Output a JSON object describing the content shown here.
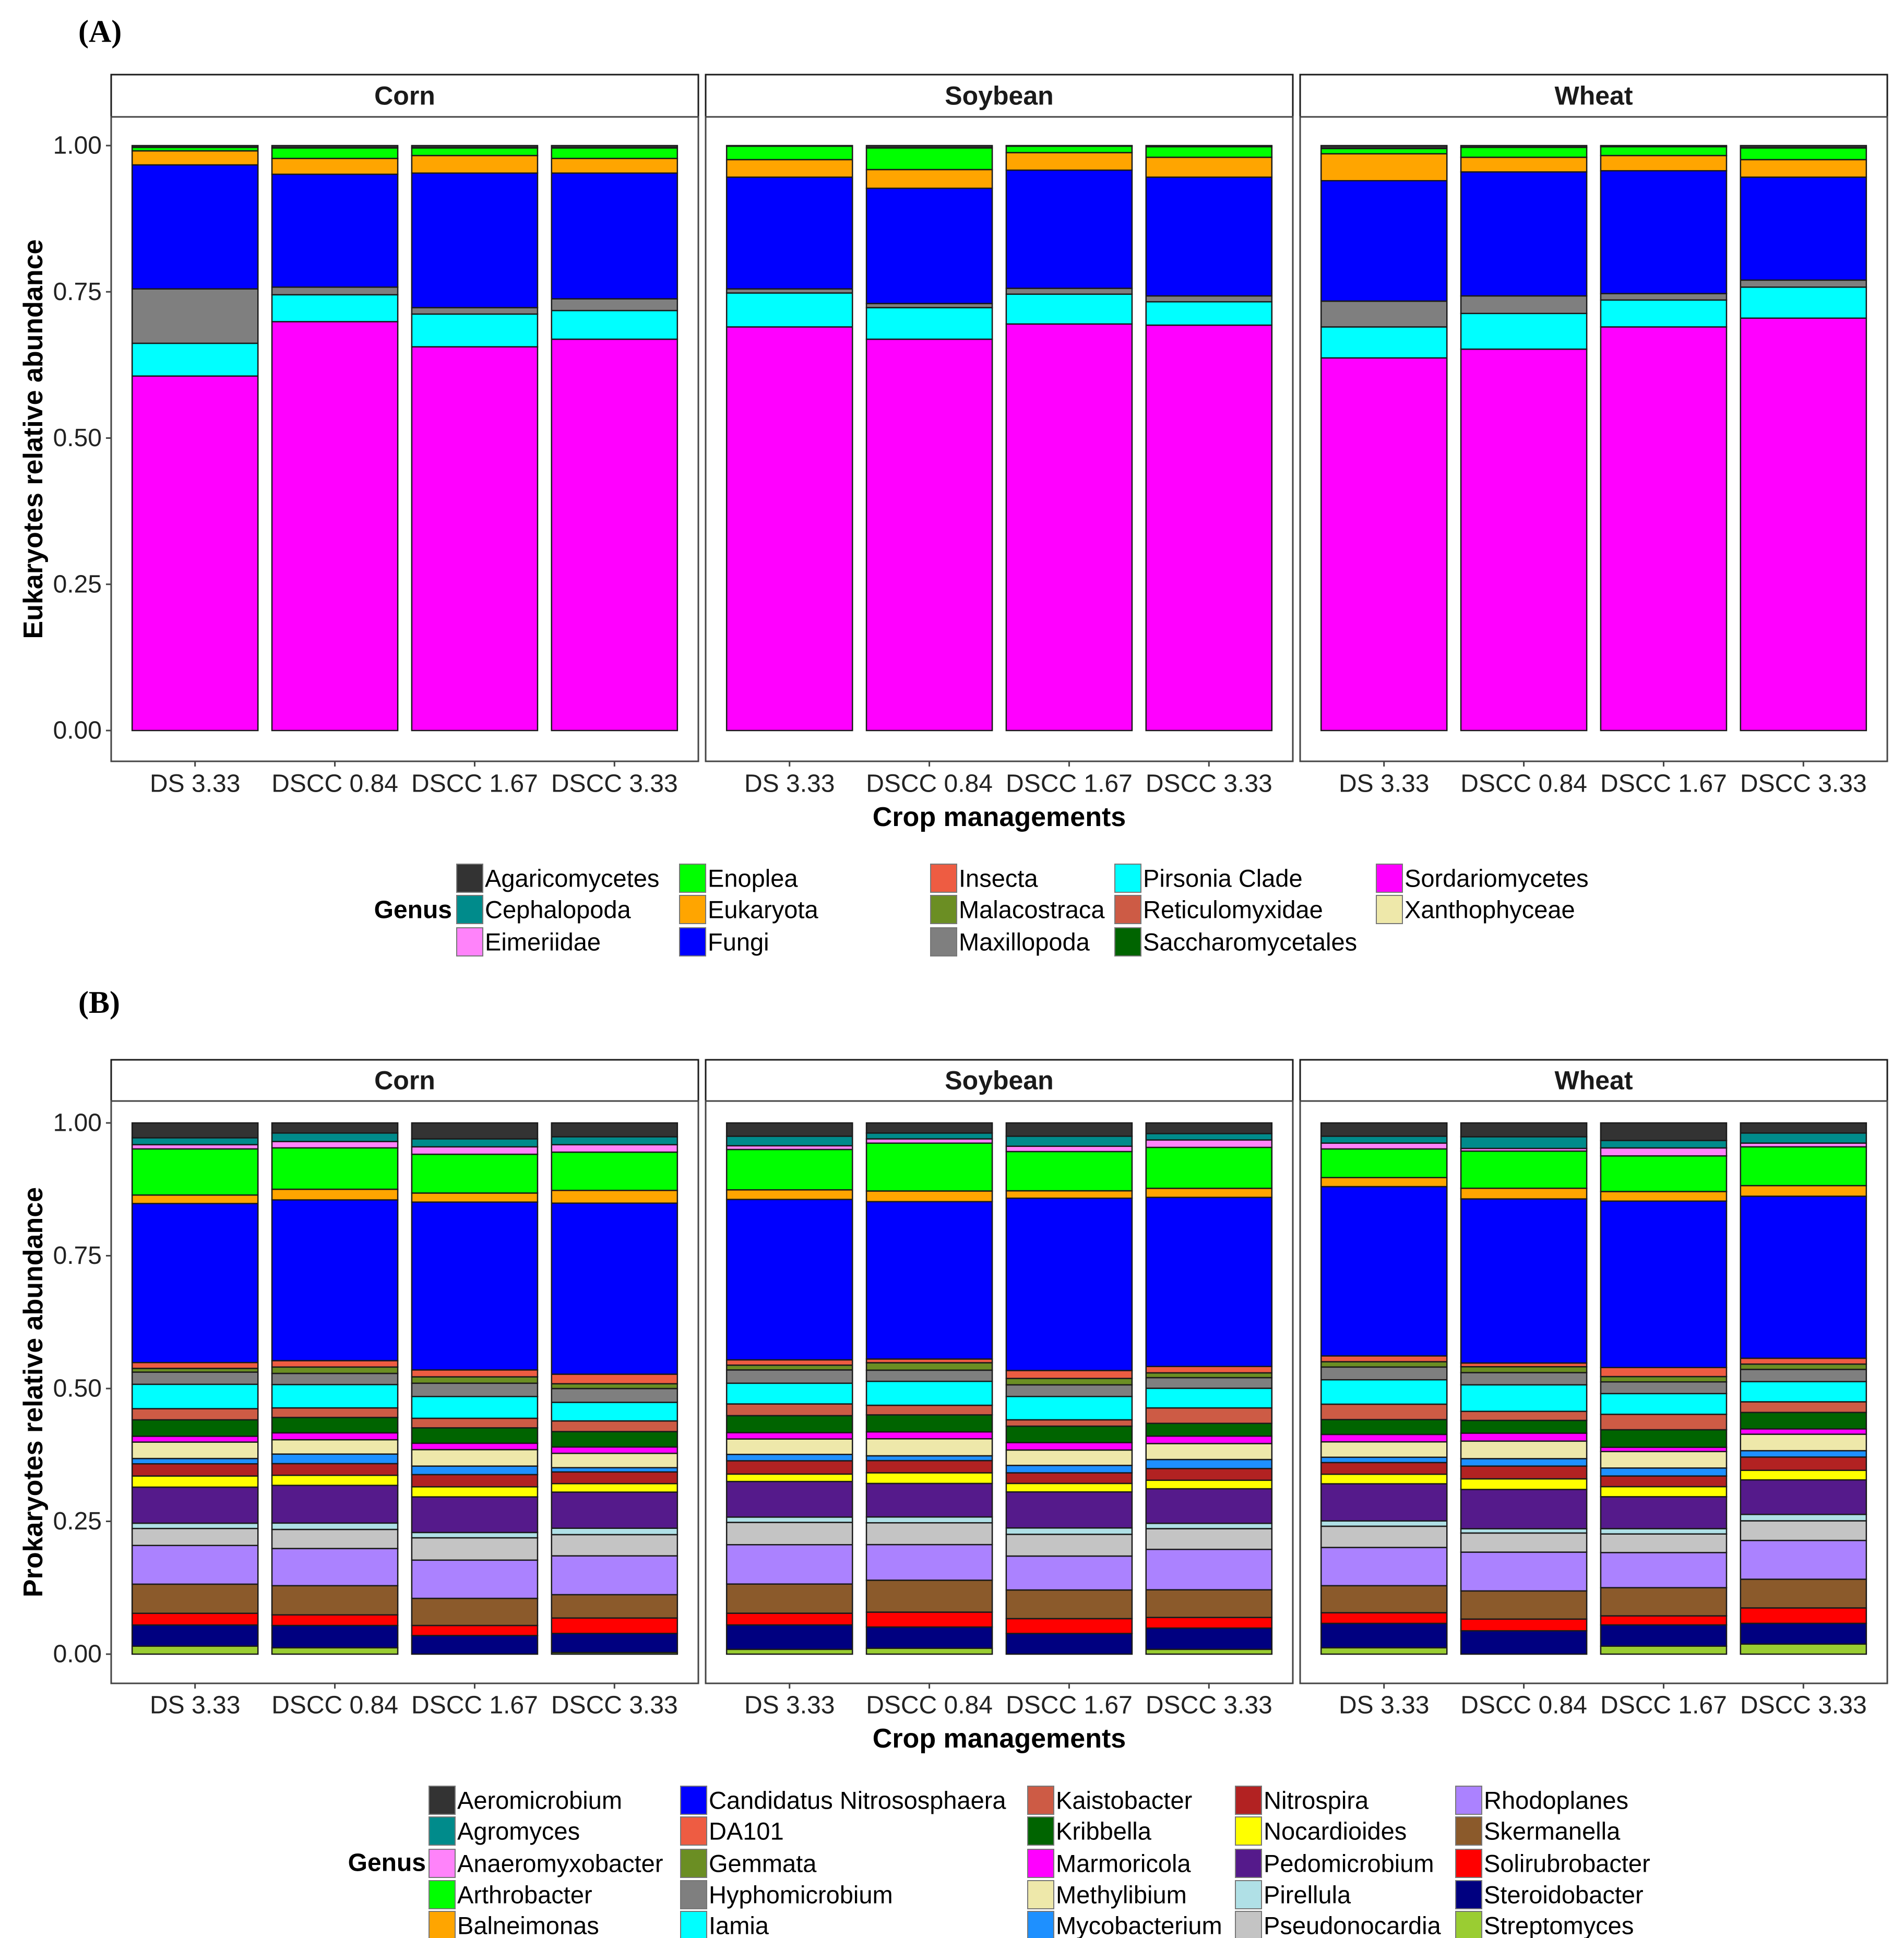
{
  "chart_data": [
    {
      "panel_label": "(A)",
      "type": "bar",
      "stacked": true,
      "ylabel": "Eukaryotes relative abundance",
      "xlabel": "Crop managements",
      "ylim": [
        0,
        1
      ],
      "yticks": [
        "0.00",
        "0.25",
        "0.50",
        "0.75",
        "1.00"
      ],
      "facets": [
        "Corn",
        "Soybean",
        "Wheat"
      ],
      "categories": [
        "DS 3.33",
        "DSCC 0.84",
        "DSCC 1.67",
        "DSCC 3.33"
      ],
      "legend_title": "Genus",
      "legend_rows": 3,
      "legend": [
        {
          "name": "Agaricomycetes",
          "color": "#333333"
        },
        {
          "name": "Cephalopoda",
          "color": "#008B8B"
        },
        {
          "name": "Eimeriidae",
          "color": "#FF83FA"
        },
        {
          "name": "Enoplea",
          "color": "#00FF00"
        },
        {
          "name": "Eukaryota",
          "color": "#FFA500"
        },
        {
          "name": "Fungi",
          "color": "#0000FF"
        },
        {
          "name": "Insecta",
          "color": "#EE5C42"
        },
        {
          "name": "Malacostraca",
          "color": "#6B8E23"
        },
        {
          "name": "Maxillopoda",
          "color": "#7F7F7F"
        },
        {
          "name": "Pirsonia  Clade",
          "color": "#00FFFF"
        },
        {
          "name": "Reticulomyxidae",
          "color": "#CD5B45"
        },
        {
          "name": "Saccharomycetales",
          "color": "#006400"
        },
        {
          "name": "Sordariomycetes",
          "color": "#FF00FF"
        },
        {
          "name": "Xanthophyceae",
          "color": "#EEE8AA"
        }
      ],
      "stack_order_bottom_to_top": [
        "Xanthophyceae",
        "Sordariomycetes",
        "Saccharomycetales",
        "Reticulomyxidae",
        "Pirsonia  Clade",
        "Maxillopoda",
        "Malacostraca",
        "Insecta",
        "Fungi",
        "Eukaryota",
        "Enoplea",
        "Eimeriidae",
        "Cephalopoda",
        "Agaricomycetes"
      ],
      "bars": [
        {
          "facet": "Corn",
          "category": "DS 3.33",
          "values": [
            0,
            0.606,
            0,
            0,
            0.056,
            0.093,
            0,
            0,
            0.212,
            0.024,
            0.006,
            0,
            0,
            0.003
          ]
        },
        {
          "facet": "Corn",
          "category": "DSCC 0.84",
          "values": [
            0,
            0.699,
            0,
            0,
            0.046,
            0.013,
            0,
            0,
            0.193,
            0.027,
            0.018,
            0,
            0,
            0.004
          ]
        },
        {
          "facet": "Corn",
          "category": "DSCC 1.67",
          "values": [
            0,
            0.656,
            0,
            0,
            0.056,
            0.011,
            0,
            0,
            0.23,
            0.03,
            0.013,
            0,
            0,
            0.004
          ]
        },
        {
          "facet": "Corn",
          "category": "DSCC 3.33",
          "values": [
            0,
            0.669,
            0,
            0,
            0.049,
            0.02,
            0,
            0,
            0.215,
            0.025,
            0.018,
            0,
            0,
            0.004
          ]
        },
        {
          "facet": "Soybean",
          "category": "DS 3.33",
          "values": [
            0,
            0.69,
            0,
            0,
            0.058,
            0.007,
            0,
            0,
            0.191,
            0.03,
            0.023,
            0,
            0,
            0.001
          ]
        },
        {
          "facet": "Soybean",
          "category": "DSCC 0.84",
          "values": [
            0,
            0.669,
            0,
            0,
            0.054,
            0.007,
            0,
            0,
            0.197,
            0.032,
            0.037,
            0,
            0,
            0.004
          ]
        },
        {
          "facet": "Soybean",
          "category": "DSCC 1.67",
          "values": [
            0,
            0.695,
            0,
            0,
            0.051,
            0.01,
            0,
            0,
            0.202,
            0.03,
            0.011,
            0,
            0,
            0.001
          ]
        },
        {
          "facet": "Soybean",
          "category": "DSCC 3.33",
          "values": [
            0,
            0.693,
            0,
            0,
            0.04,
            0.01,
            0,
            0,
            0.203,
            0.034,
            0.018,
            0,
            0,
            0.002
          ]
        },
        {
          "facet": "Wheat",
          "category": "DS 3.33",
          "values": [
            0,
            0.637,
            0,
            0,
            0.053,
            0.044,
            0,
            0,
            0.206,
            0.046,
            0.009,
            0,
            0,
            0.005
          ]
        },
        {
          "facet": "Wheat",
          "category": "DSCC 0.84",
          "values": [
            0,
            0.652,
            0,
            0,
            0.061,
            0.03,
            0,
            0,
            0.212,
            0.025,
            0.017,
            0,
            0,
            0.003
          ]
        },
        {
          "facet": "Wheat",
          "category": "DSCC 1.67",
          "values": [
            0,
            0.69,
            0,
            0,
            0.046,
            0.011,
            0,
            0,
            0.21,
            0.026,
            0.015,
            0,
            0,
            0.002
          ]
        },
        {
          "facet": "Wheat",
          "category": "DSCC 3.33",
          "values": [
            0,
            0.705,
            0,
            0,
            0.053,
            0.012,
            0,
            0,
            0.176,
            0.03,
            0.02,
            0,
            0,
            0.004
          ]
        }
      ]
    },
    {
      "panel_label": "(B)",
      "type": "bar",
      "stacked": true,
      "ylabel": "Prokaryotes relative abundance",
      "xlabel": "Crop managements",
      "ylim": [
        0,
        1
      ],
      "yticks": [
        "0.00",
        "0.25",
        "0.50",
        "0.75",
        "1.00"
      ],
      "facets": [
        "Corn",
        "Soybean",
        "Wheat"
      ],
      "categories": [
        "DS 3.33",
        "DSCC 0.84",
        "DSCC 1.67",
        "DSCC 3.33"
      ],
      "legend_title": "Genus",
      "legend_rows": 5,
      "legend": [
        {
          "name": "Aeromicrobium",
          "color": "#333333"
        },
        {
          "name": "Agromyces",
          "color": "#008B8B"
        },
        {
          "name": "Anaeromyxobacter",
          "color": "#FF83FA"
        },
        {
          "name": "Arthrobacter",
          "color": "#00FF00"
        },
        {
          "name": "Balneimonas",
          "color": "#FFA500"
        },
        {
          "name": "Candidatus Nitrososphaera",
          "color": "#0000FF"
        },
        {
          "name": "DA101",
          "color": "#EE5C42"
        },
        {
          "name": "Gemmata",
          "color": "#6B8E23"
        },
        {
          "name": "Hyphomicrobium",
          "color": "#7F7F7F"
        },
        {
          "name": "Iamia",
          "color": "#00FFFF"
        },
        {
          "name": "Kaistobacter",
          "color": "#CD5B45"
        },
        {
          "name": "Kribbella",
          "color": "#006400"
        },
        {
          "name": "Marmoricola",
          "color": "#FF00FF"
        },
        {
          "name": "Methylibium",
          "color": "#EEE8AA"
        },
        {
          "name": "Mycobacterium",
          "color": "#1E90FF"
        },
        {
          "name": "Nitrospira",
          "color": "#B22222"
        },
        {
          "name": "Nocardioides",
          "color": "#FFFF00"
        },
        {
          "name": "Pedomicrobium",
          "color": "#551A8B"
        },
        {
          "name": "Pirellula",
          "color": "#B0E0E6"
        },
        {
          "name": "Pseudonocardia",
          "color": "#C4C4C4"
        },
        {
          "name": "Rhodoplanes",
          "color": "#AB82FF"
        },
        {
          "name": "Skermanella",
          "color": "#8B5A2B"
        },
        {
          "name": "Solirubrobacter",
          "color": "#FF0000"
        },
        {
          "name": "Steroidobacter",
          "color": "#000080"
        },
        {
          "name": "Streptomyces",
          "color": "#9ACD32"
        }
      ],
      "stack_order_bottom_to_top": [
        "Streptomyces",
        "Steroidobacter",
        "Solirubrobacter",
        "Skermanella",
        "Rhodoplanes",
        "Pseudonocardia",
        "Pirellula",
        "Pedomicrobium",
        "Nocardioides",
        "Nitrospira",
        "Mycobacterium",
        "Methylibium",
        "Marmoricola",
        "Kribbella",
        "Kaistobacter",
        "Iamia",
        "Hyphomicrobium",
        "Gemmata",
        "DA101",
        "Candidatus Nitrososphaera",
        "Balneimonas",
        "Arthrobacter",
        "Anaeromyxobacter",
        "Agromyces",
        "Aeromicrobium"
      ],
      "bars": [
        {
          "facet": "Corn",
          "category": "DS 3.33",
          "values": [
            0.015,
            0.04,
            0.022,
            0.055,
            0.073,
            0.032,
            0.01,
            0.068,
            0.021,
            0.023,
            0.01,
            0.031,
            0.011,
            0.031,
            0.021,
            0.046,
            0.023,
            0.007,
            0.011,
            0.3,
            0.016,
            0.087,
            0.008,
            0.013,
            0.028
          ]
        },
        {
          "facet": "Corn",
          "category": "DSCC 0.84",
          "values": [
            0.012,
            0.042,
            0.02,
            0.055,
            0.07,
            0.036,
            0.012,
            0.071,
            0.019,
            0.022,
            0.018,
            0.027,
            0.013,
            0.029,
            0.018,
            0.044,
            0.021,
            0.012,
            0.012,
            0.303,
            0.02,
            0.078,
            0.012,
            0.016,
            0.019
          ]
        },
        {
          "facet": "Corn",
          "category": "DSCC 1.67",
          "values": [
            0,
            0.035,
            0.019,
            0.051,
            0.072,
            0.042,
            0.01,
            0.067,
            0.019,
            0.023,
            0.016,
            0.031,
            0.012,
            0.029,
            0.018,
            0.041,
            0.025,
            0.012,
            0.013,
            0.316,
            0.017,
            0.073,
            0.014,
            0.015,
            0.03
          ]
        },
        {
          "facet": "Corn",
          "category": "DSCC 3.33",
          "values": [
            0.003,
            0.036,
            0.029,
            0.044,
            0.073,
            0.04,
            0.012,
            0.068,
            0.016,
            0.022,
            0.008,
            0.027,
            0.012,
            0.029,
            0.02,
            0.035,
            0.026,
            0.009,
            0.018,
            0.322,
            0.024,
            0.072,
            0.014,
            0.015,
            0.026
          ]
        },
        {
          "facet": "Soybean",
          "category": "DS 3.33",
          "values": [
            0.009,
            0.046,
            0.022,
            0.055,
            0.074,
            0.042,
            0.01,
            0.067,
            0.014,
            0.025,
            0.012,
            0.029,
            0.012,
            0.032,
            0.022,
            0.039,
            0.025,
            0.009,
            0.01,
            0.302,
            0.018,
            0.076,
            0.007,
            0.018,
            0.025
          ]
        },
        {
          "facet": "Soybean",
          "category": "DSCC 0.84",
          "values": [
            0.011,
            0.04,
            0.028,
            0.06,
            0.067,
            0.041,
            0.011,
            0.063,
            0.02,
            0.023,
            0.009,
            0.032,
            0.013,
            0.032,
            0.018,
            0.045,
            0.021,
            0.014,
            0.007,
            0.296,
            0.02,
            0.09,
            0.008,
            0.011,
            0.019
          ]
        },
        {
          "facet": "Soybean",
          "category": "DSCC 1.67",
          "values": [
            0,
            0.039,
            0.028,
            0.054,
            0.064,
            0.041,
            0.012,
            0.068,
            0.016,
            0.02,
            0.014,
            0.029,
            0.014,
            0.031,
            0.012,
            0.044,
            0.022,
            0.012,
            0.015,
            0.325,
            0.014,
            0.074,
            0.01,
            0.019,
            0.025
          ]
        },
        {
          "facet": "Soybean",
          "category": "DSCC 3.33",
          "values": [
            0.009,
            0.04,
            0.02,
            0.052,
            0.076,
            0.039,
            0.01,
            0.065,
            0.016,
            0.022,
            0.017,
            0.03,
            0.014,
            0.024,
            0.029,
            0.037,
            0.02,
            0.009,
            0.012,
            0.318,
            0.017,
            0.077,
            0.014,
            0.012,
            0.02
          ]
        },
        {
          "facet": "Wheat",
          "category": "DS 3.33",
          "values": [
            0.012,
            0.046,
            0.02,
            0.051,
            0.072,
            0.04,
            0.01,
            0.07,
            0.018,
            0.022,
            0.01,
            0.029,
            0.014,
            0.028,
            0.029,
            0.046,
            0.024,
            0.01,
            0.011,
            0.319,
            0.017,
            0.054,
            0.011,
            0.013,
            0.025
          ]
        },
        {
          "facet": "Wheat",
          "category": "DSCC 0.84",
          "values": [
            0,
            0.044,
            0.022,
            0.053,
            0.073,
            0.036,
            0.008,
            0.074,
            0.02,
            0.024,
            0.014,
            0.033,
            0.015,
            0.024,
            0.017,
            0.05,
            0.023,
            0.011,
            0.007,
            0.309,
            0.02,
            0.07,
            0.005,
            0.022,
            0.026
          ]
        },
        {
          "facet": "Wheat",
          "category": "DSCC 1.67",
          "values": [
            0.015,
            0.04,
            0.017,
            0.053,
            0.066,
            0.035,
            0.01,
            0.06,
            0.019,
            0.02,
            0.015,
            0.031,
            0.008,
            0.033,
            0.029,
            0.039,
            0.022,
            0.01,
            0.017,
            0.313,
            0.018,
            0.067,
            0.015,
            0.014,
            0.033
          ]
        },
        {
          "facet": "Wheat",
          "category": "DSCC 3.33",
          "values": [
            0.019,
            0.039,
            0.029,
            0.054,
            0.073,
            0.037,
            0.012,
            0.065,
            0.018,
            0.025,
            0.012,
            0.031,
            0.01,
            0.031,
            0.02,
            0.038,
            0.023,
            0.01,
            0.011,
            0.305,
            0.02,
            0.073,
            0.007,
            0.019,
            0.019
          ]
        }
      ]
    }
  ]
}
